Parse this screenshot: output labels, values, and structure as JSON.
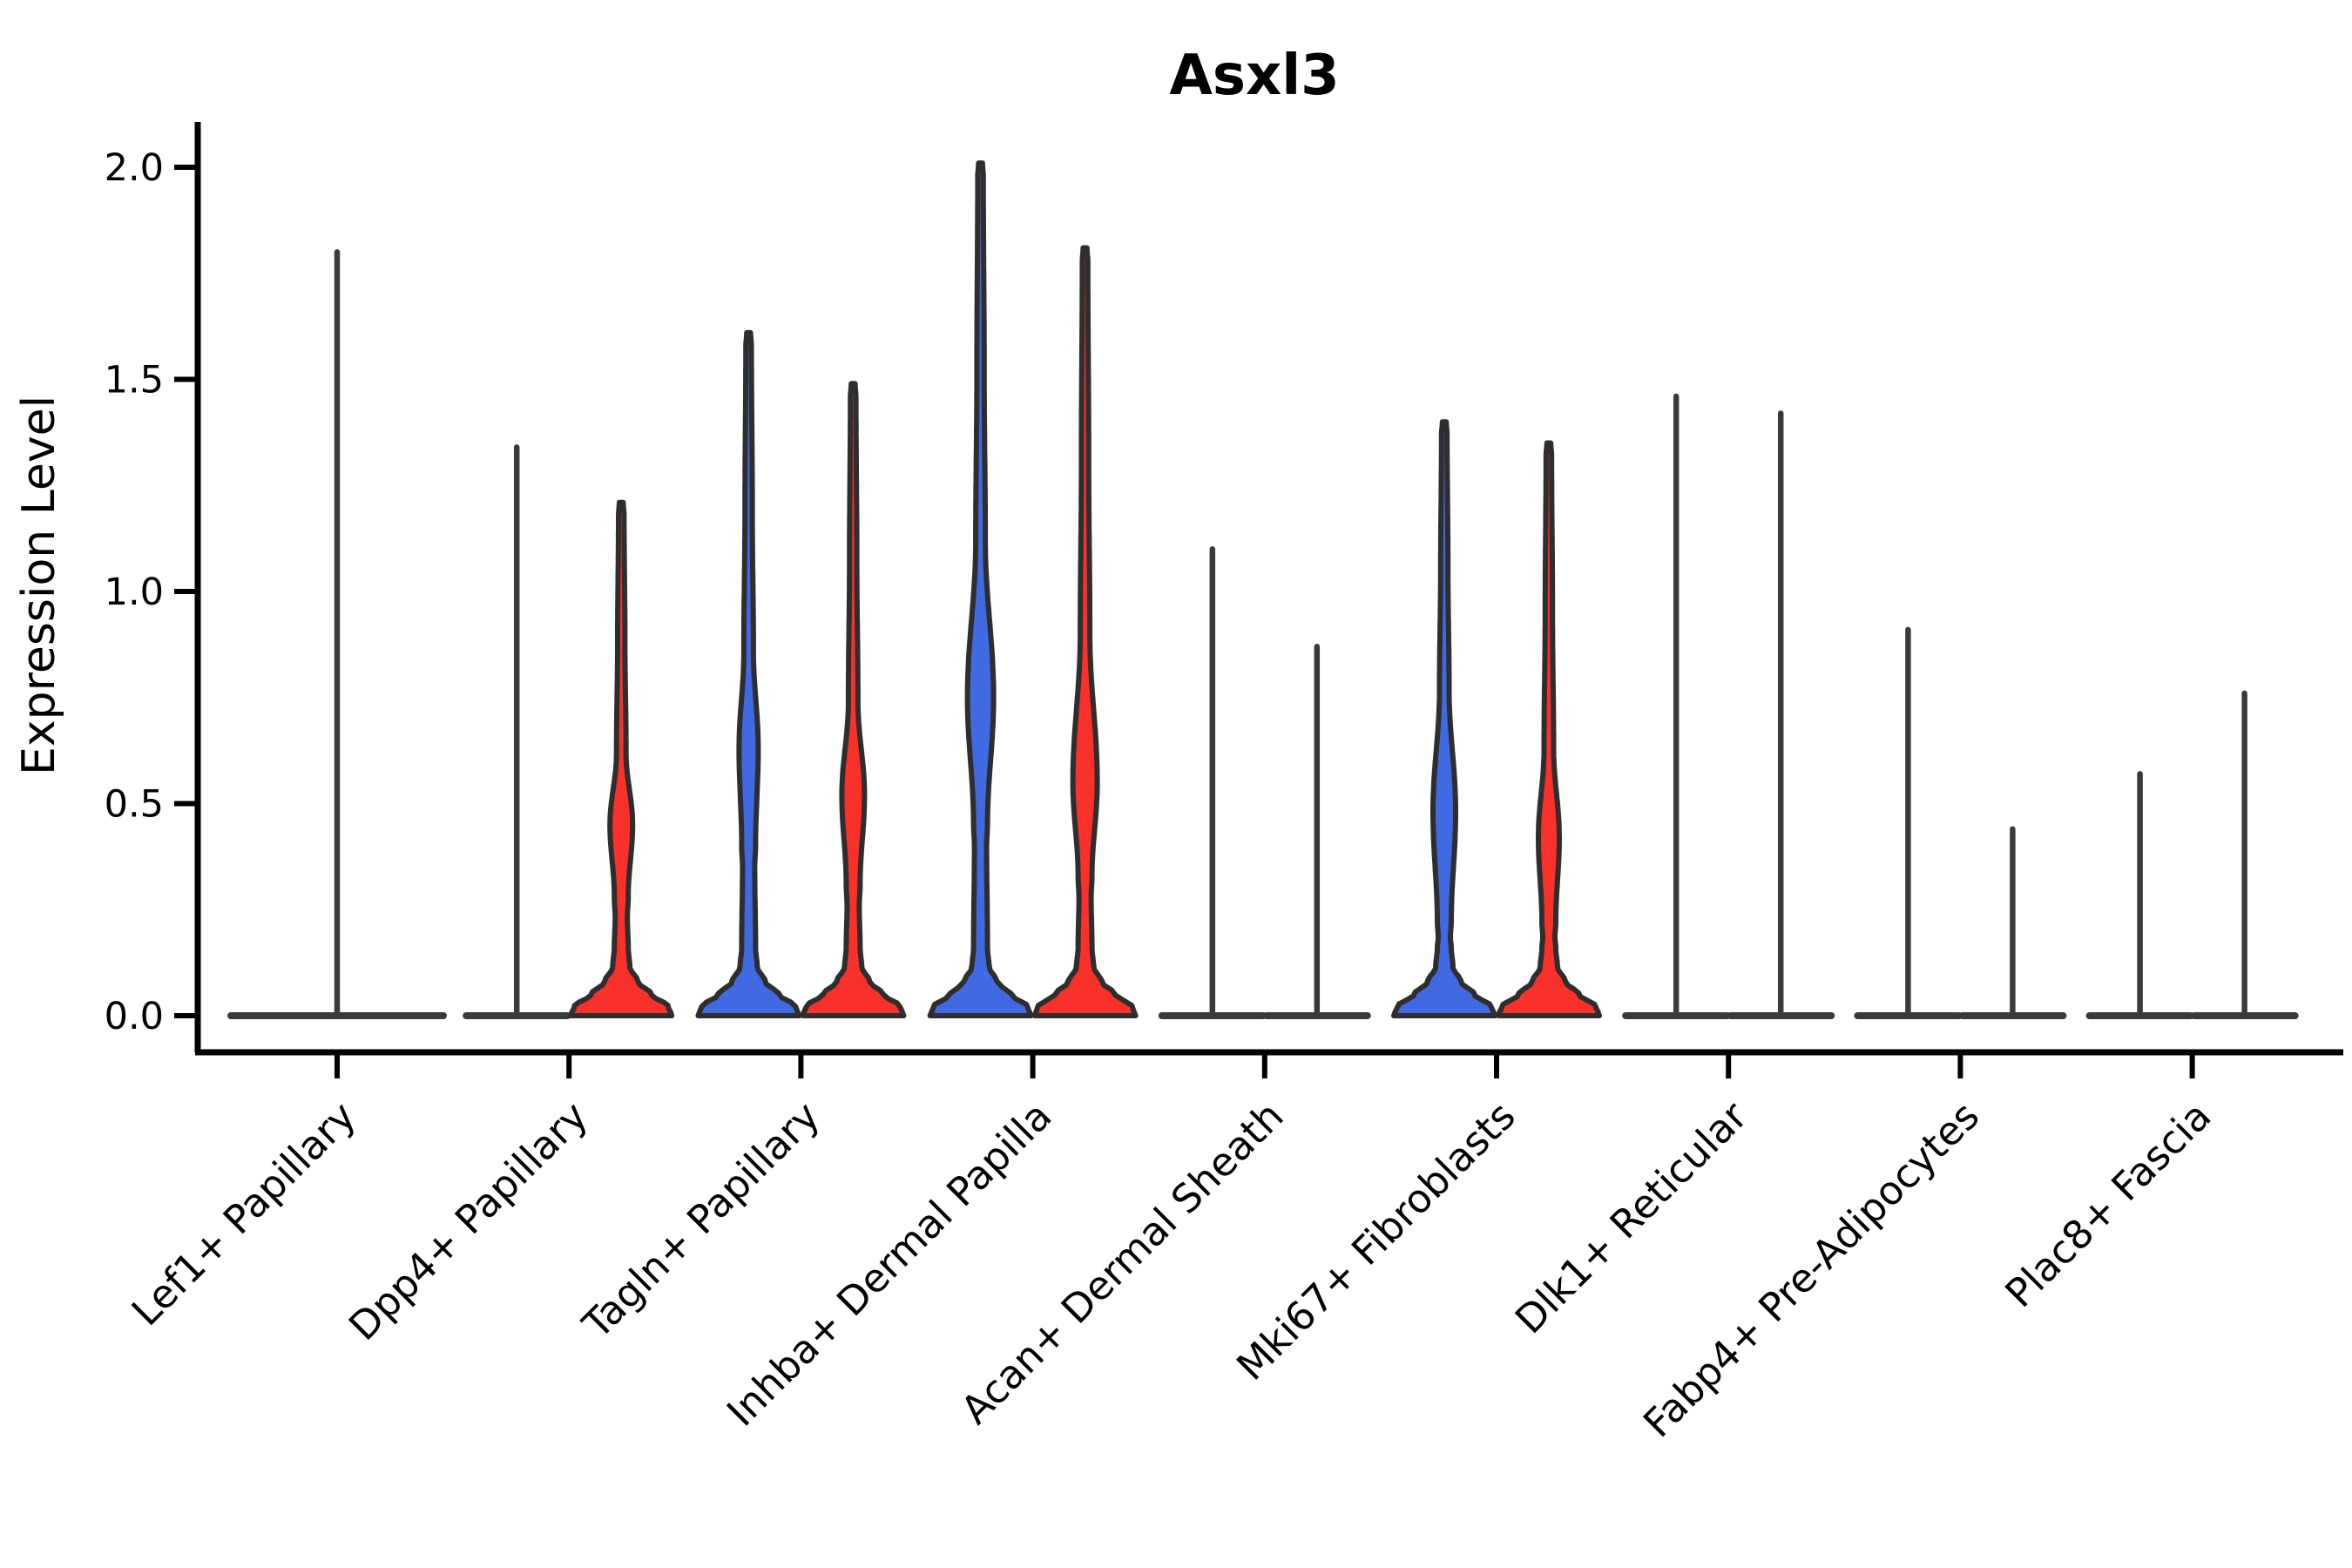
{
  "chart_data": {
    "type": "violin",
    "title": "Asxl3",
    "xlabel": "",
    "ylabel": "Expression Level",
    "ylim": [
      0,
      2.05
    ],
    "yticks": [
      {
        "label": "0.0",
        "value": 0.0
      },
      {
        "label": "0.5",
        "value": 0.5
      },
      {
        "label": "1.0",
        "value": 1.0
      },
      {
        "label": "1.5",
        "value": 1.5
      },
      {
        "label": "2.0",
        "value": 2.0
      }
    ],
    "grid": false,
    "legend_position": "none",
    "colors": {
      "blue": "#4169E1",
      "red": "#F8312A",
      "edge": "#2e2e2e",
      "flat_line": "#3a3a3a",
      "axis": "#000000"
    },
    "groups": [
      {
        "label": "Lef1+ Papillary",
        "layout": "single",
        "violins": [
          {
            "side": "center",
            "fill": null,
            "max": 1.8,
            "bulge": null
          }
        ]
      },
      {
        "label": "Dpp4+ Papillary",
        "layout": "pair",
        "violins": [
          {
            "side": "left",
            "fill": null,
            "max": 1.34,
            "bulge": null
          },
          {
            "side": "right",
            "fill": "red",
            "max": 1.21,
            "bulge": {
              "bottom": 0.28,
              "peak": 0.45,
              "top": 0.62,
              "halfwidth": 13
            }
          }
        ]
      },
      {
        "label": "Tagln+ Papillary",
        "layout": "pair",
        "violins": [
          {
            "side": "left",
            "fill": "blue",
            "max": 1.61,
            "bulge": {
              "bottom": 0.4,
              "peak": 0.63,
              "top": 0.86,
              "halfwidth": 11
            }
          },
          {
            "side": "right",
            "fill": "red",
            "max": 1.49,
            "bulge": {
              "bottom": 0.31,
              "peak": 0.52,
              "top": 0.74,
              "halfwidth": 13
            }
          }
        ]
      },
      {
        "label": "Inhba+ Dermal Papilla",
        "layout": "pair",
        "violins": [
          {
            "side": "left",
            "fill": "blue",
            "max": 2.01,
            "bulge": {
              "bottom": 0.45,
              "peak": 0.75,
              "top": 1.12,
              "halfwidth": 15
            }
          },
          {
            "side": "right",
            "fill": "red",
            "max": 1.81,
            "bulge": {
              "bottom": 0.33,
              "peak": 0.55,
              "top": 0.9,
              "halfwidth": 14
            }
          }
        ]
      },
      {
        "label": "Acan+ Dermal Sheath",
        "layout": "pair",
        "violins": [
          {
            "side": "left",
            "fill": null,
            "max": 1.1,
            "bulge": null
          },
          {
            "side": "right",
            "fill": null,
            "max": 0.87,
            "bulge": null
          }
        ]
      },
      {
        "label": "Mki67+ Fibroblasts",
        "layout": "pair",
        "violins": [
          {
            "side": "left",
            "fill": "blue",
            "max": 1.4,
            "bulge": {
              "bottom": 0.22,
              "peak": 0.48,
              "top": 0.77,
              "halfwidth": 13
            }
          },
          {
            "side": "right",
            "fill": "red",
            "max": 1.35,
            "bulge": {
              "bottom": 0.22,
              "peak": 0.42,
              "top": 0.63,
              "halfwidth": 12
            }
          }
        ]
      },
      {
        "label": "Dlk1+ Reticular",
        "layout": "pair",
        "violins": [
          {
            "side": "left",
            "fill": null,
            "max": 1.46,
            "bulge": null
          },
          {
            "side": "right",
            "fill": null,
            "max": 1.42,
            "bulge": null
          }
        ]
      },
      {
        "label": "Fabp4+ Pre-Adipocytes",
        "layout": "pair",
        "violins": [
          {
            "side": "left",
            "fill": null,
            "max": 0.91,
            "bulge": null
          },
          {
            "side": "right",
            "fill": null,
            "max": 0.44,
            "bulge": null
          }
        ]
      },
      {
        "label": "Plac8+ Fascia",
        "layout": "pair",
        "violins": [
          {
            "side": "left",
            "fill": null,
            "max": 0.57,
            "bulge": null
          },
          {
            "side": "right",
            "fill": null,
            "max": 0.76,
            "bulge": null
          }
        ]
      }
    ]
  }
}
